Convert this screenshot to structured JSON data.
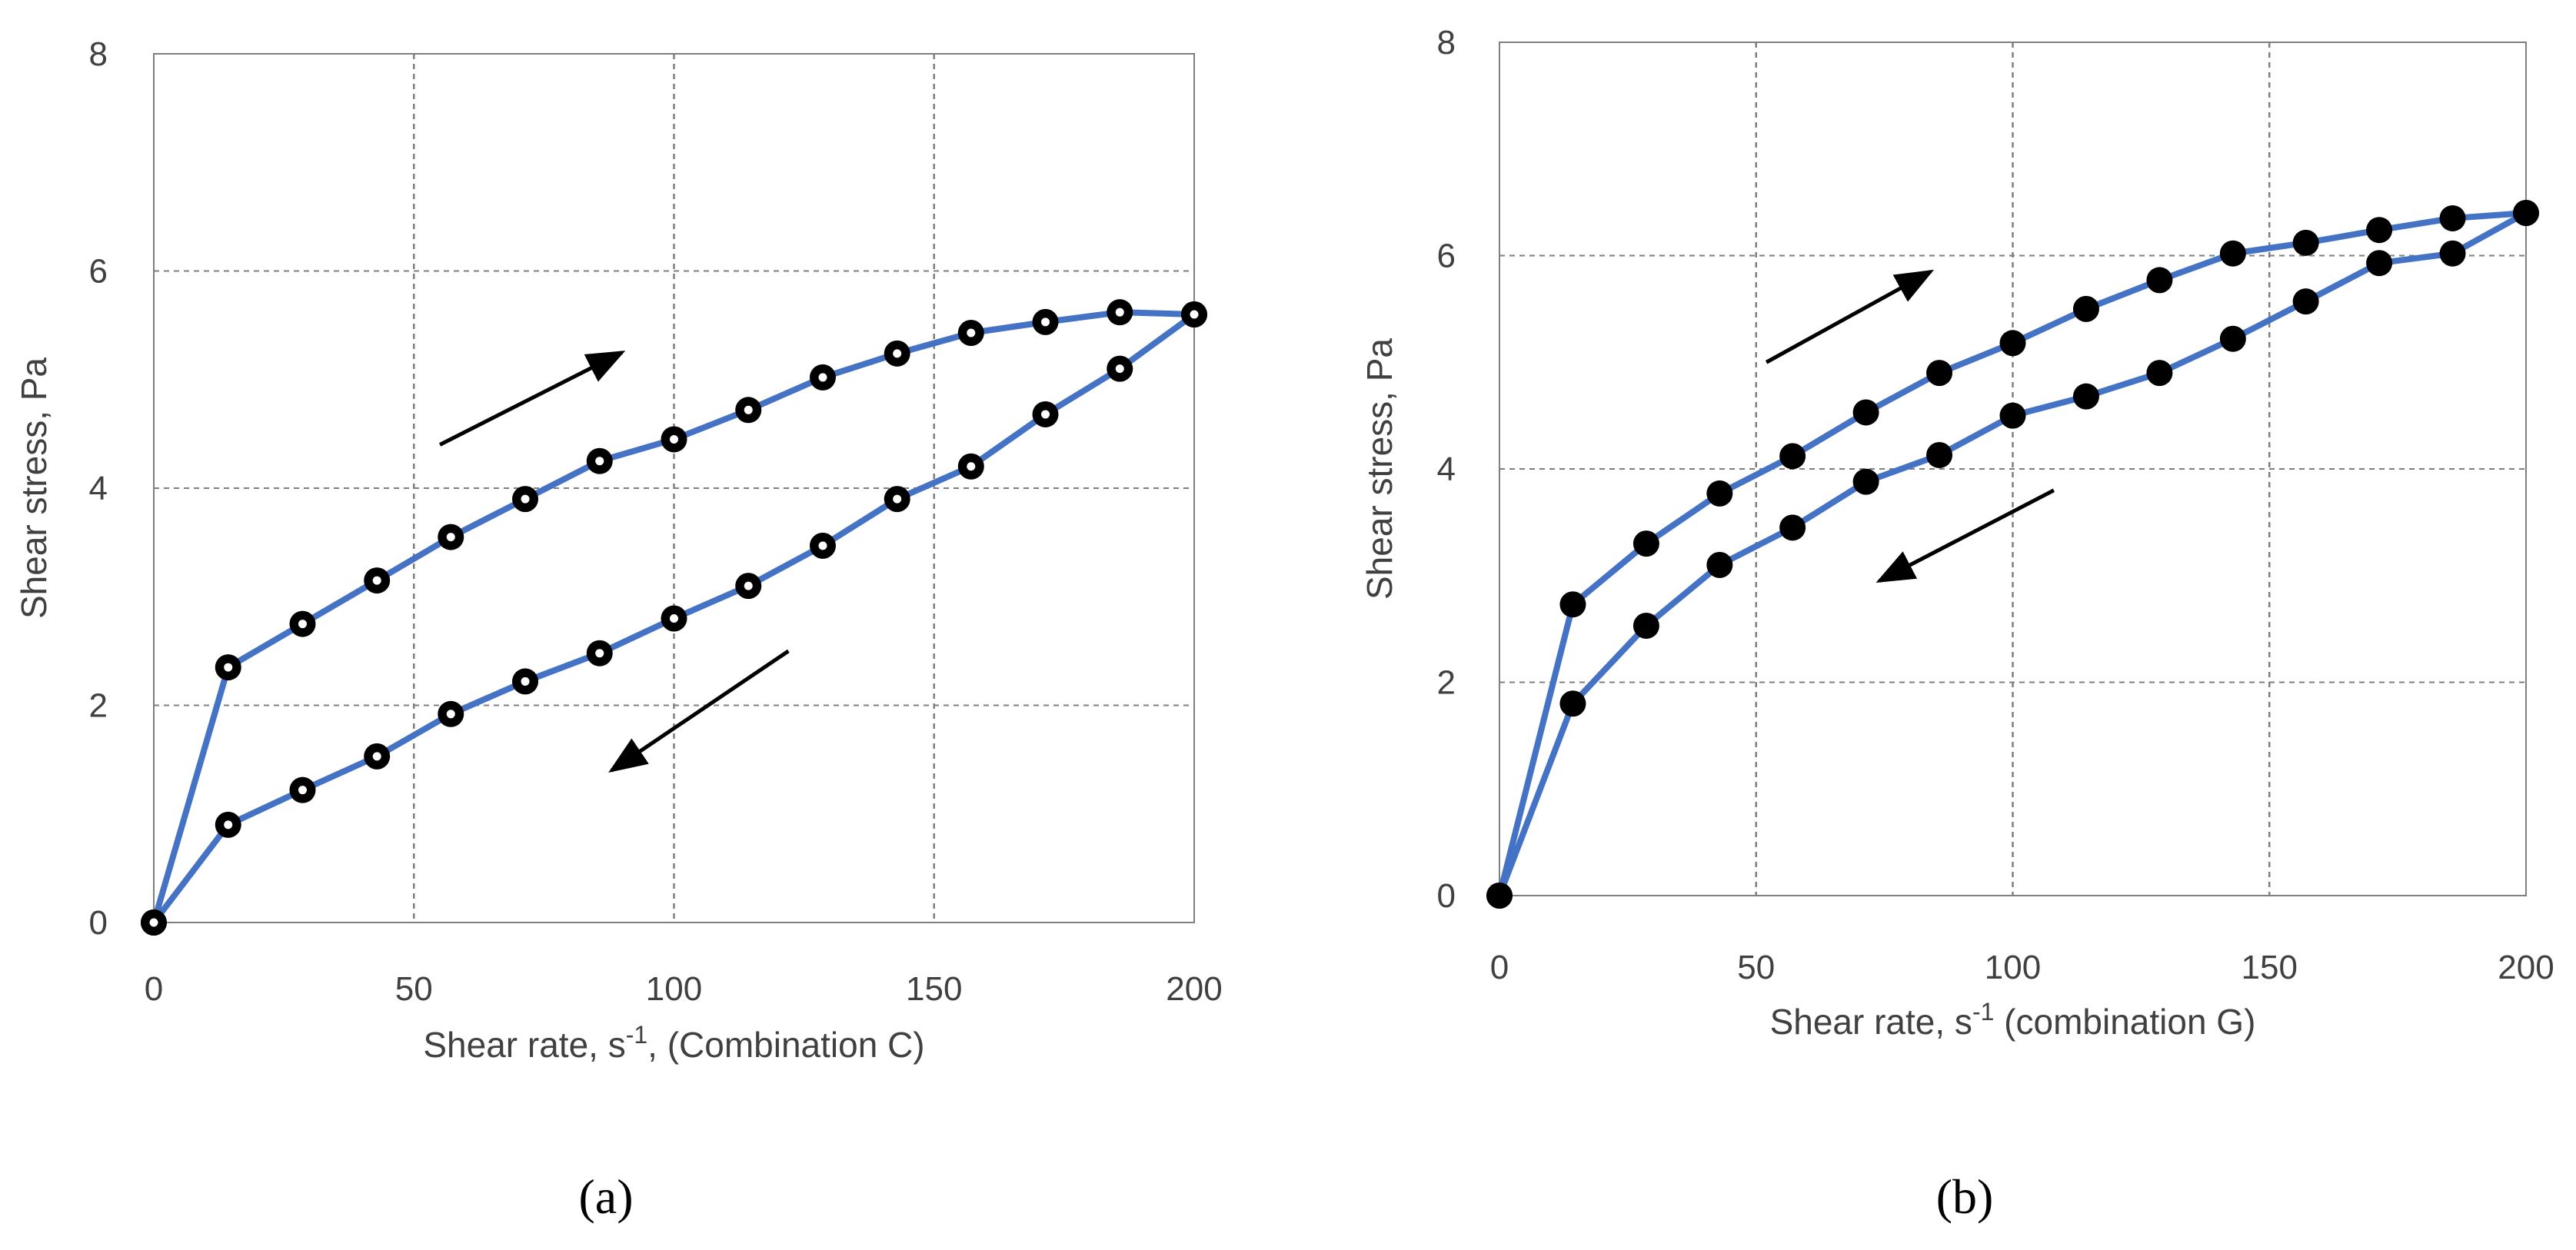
{
  "colors": {
    "series_line": "#4472C4",
    "marker": "#000000",
    "grid": "#7f7f7f",
    "axis": "#7f7f7f",
    "arrow": "#000000"
  },
  "chart_data": [
    {
      "type": "line",
      "panel_label": "(a)",
      "title": "",
      "xlabel": "Shear rate, s",
      "xlabel_sup": "-1",
      "xlabel_suffix": ", (Combination C)",
      "ylabel": "Shear stress, Pa",
      "xlim": [
        0,
        200
      ],
      "ylim": [
        0,
        8
      ],
      "xticks": [
        "0",
        "50",
        "100",
        "150",
        "200"
      ],
      "yticks": [
        "0",
        "2",
        "4",
        "6",
        "8"
      ],
      "grid": true,
      "marker": "hollow-dot",
      "series": [
        {
          "name": "up-curve",
          "x": [
            0,
            14.3,
            28.6,
            42.9,
            57.1,
            71.4,
            85.7,
            100,
            114.3,
            128.6,
            142.9,
            157.1,
            171.4,
            185.7,
            200
          ],
          "y": [
            0,
            2.35,
            2.75,
            3.15,
            3.55,
            3.9,
            4.25,
            4.45,
            4.72,
            5.02,
            5.24,
            5.43,
            5.53,
            5.62,
            5.6
          ]
        },
        {
          "name": "down-curve",
          "x": [
            0,
            14.3,
            28.6,
            42.9,
            57.1,
            71.4,
            85.7,
            100,
            114.3,
            128.6,
            142.9,
            157.1,
            171.4,
            185.7,
            200
          ],
          "y": [
            0,
            0.9,
            1.22,
            1.53,
            1.92,
            2.22,
            2.48,
            2.8,
            3.1,
            3.47,
            3.9,
            4.2,
            4.68,
            5.1,
            5.6
          ]
        }
      ],
      "arrows": [
        {
          "from": [
            55,
            4.4
          ],
          "to": [
            90,
            5.25
          ]
        },
        {
          "from": [
            122,
            2.5
          ],
          "to": [
            88,
            1.4
          ]
        }
      ]
    },
    {
      "type": "line",
      "panel_label": "(b)",
      "title": "",
      "xlabel": "Shear rate, s",
      "xlabel_sup": "-1",
      "xlabel_suffix": " (combination G)",
      "ylabel": "Shear stress, Pa",
      "xlim": [
        0,
        200
      ],
      "ylim": [
        0,
        8
      ],
      "xticks": [
        "0",
        "50",
        "100",
        "150",
        "200"
      ],
      "yticks": [
        "0",
        "2",
        "4",
        "6",
        "8"
      ],
      "grid": true,
      "marker": "filled-dot",
      "series": [
        {
          "name": "up-curve",
          "x": [
            0,
            14.3,
            28.6,
            42.9,
            57.1,
            71.4,
            85.7,
            100,
            114.3,
            128.6,
            142.9,
            157.1,
            171.4,
            185.7,
            200
          ],
          "y": [
            0,
            2.73,
            3.3,
            3.77,
            4.12,
            4.53,
            4.9,
            5.18,
            5.5,
            5.77,
            6.02,
            6.12,
            6.24,
            6.35,
            6.4
          ]
        },
        {
          "name": "down-curve",
          "x": [
            0,
            14.3,
            28.6,
            42.9,
            57.1,
            71.4,
            85.7,
            100,
            114.3,
            128.6,
            142.9,
            157.1,
            171.4,
            185.7,
            200
          ],
          "y": [
            0,
            1.8,
            2.53,
            3.1,
            3.45,
            3.88,
            4.13,
            4.5,
            4.68,
            4.9,
            5.22,
            5.57,
            5.93,
            6.02,
            6.4
          ]
        }
      ],
      "arrows": [
        {
          "from": [
            52,
            5.0
          ],
          "to": [
            84,
            5.85
          ]
        },
        {
          "from": [
            108,
            3.8
          ],
          "to": [
            74,
            2.95
          ]
        }
      ]
    }
  ]
}
